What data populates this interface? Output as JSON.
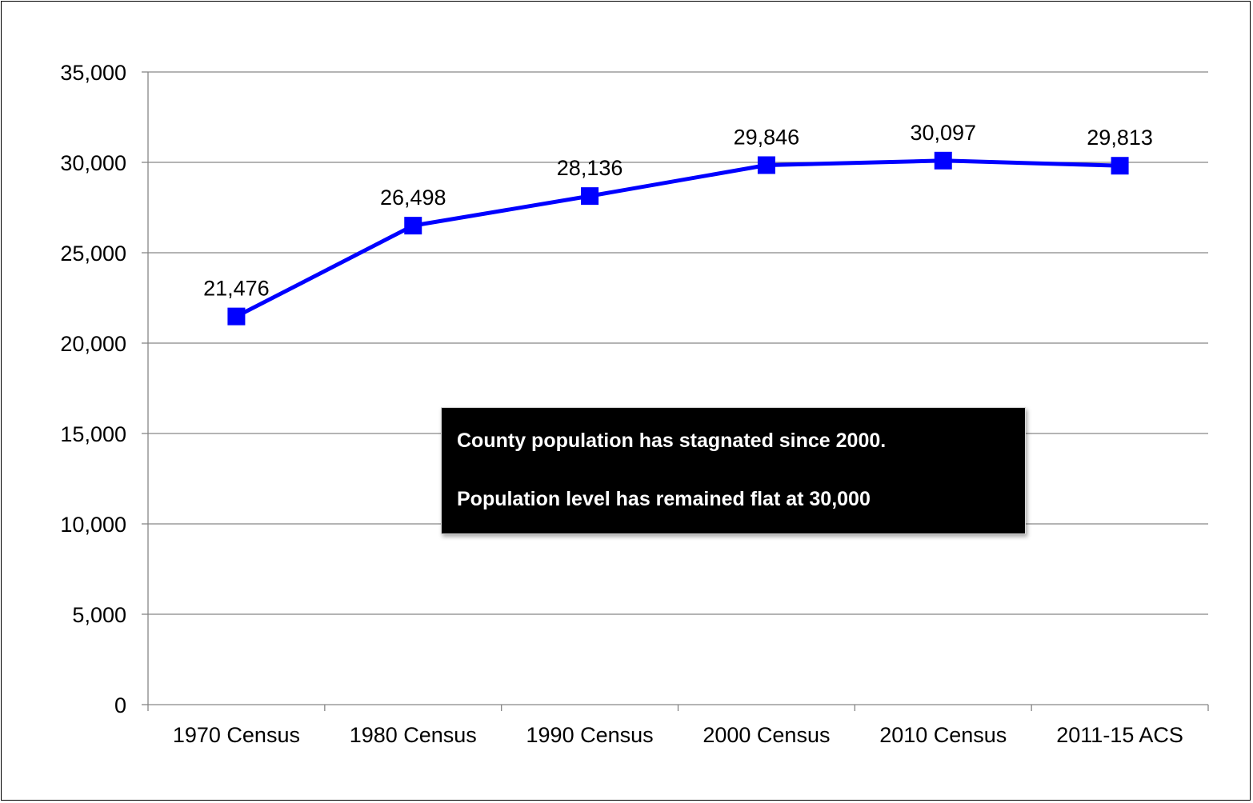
{
  "chart_data": {
    "type": "line",
    "title": "",
    "xlabel": "",
    "ylabel": "",
    "categories": [
      "1970 Census",
      "1980 Census",
      "1990 Census",
      "2000 Census",
      "2010 Census",
      "2011-15 ACS"
    ],
    "series": [
      {
        "values": [
          21476,
          26498,
          28136,
          29846,
          30097,
          29813
        ],
        "color": "#0000ff"
      }
    ],
    "data_labels": [
      "21,476",
      "26,498",
      "28,136",
      "29,846",
      "30,097",
      "29,813"
    ],
    "ylim": [
      0,
      35000
    ],
    "yticks": [
      0,
      5000,
      10000,
      15000,
      20000,
      25000,
      30000,
      35000
    ],
    "ytick_labels": [
      "0",
      "5,000",
      "10,000",
      "15,000",
      "20,000",
      "25,000",
      "30,000",
      "35,000"
    ],
    "grid": true,
    "marker": "square",
    "legend": "none"
  },
  "annotation": {
    "line1": "County population has stagnated since 2000.",
    "line2": "Population level has remained flat at 30,000"
  },
  "colors": {
    "series": "#0000ff",
    "grid": "#868686",
    "callout_bg": "#000000",
    "callout_text": "#ffffff"
  }
}
